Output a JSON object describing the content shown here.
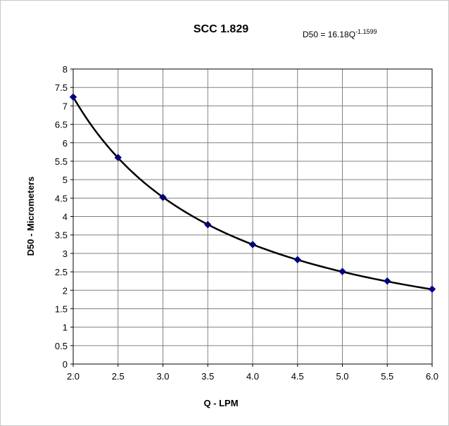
{
  "chart_data": {
    "type": "scatter",
    "title": "SCC 1.829",
    "equation": {
      "lhs": "D50 = 16.18Q",
      "exponent": "-1.1599"
    },
    "xlabel": "Q - LPM",
    "ylabel": "D50 - Micrometers",
    "xlim": [
      2.0,
      6.0
    ],
    "ylim": [
      0,
      8
    ],
    "x_ticks": [
      "2.0",
      "2.5",
      "3.0",
      "3.5",
      "4.0",
      "4.5",
      "5.0",
      "5.5",
      "6.0"
    ],
    "y_ticks": [
      "0",
      "0.5",
      "1",
      "1.5",
      "2",
      "2.5",
      "3",
      "3.5",
      "4",
      "4.5",
      "5",
      "5.5",
      "6",
      "6.5",
      "7",
      "7.5",
      "8"
    ],
    "grid": true,
    "trendline": {
      "type": "power",
      "coefficient": 16.18,
      "exponent": -1.1599,
      "color": "#000000"
    },
    "series": [
      {
        "marker": "diamond",
        "color": "#000080",
        "x": [
          2.0,
          2.5,
          3.0,
          3.5,
          4.0,
          4.5,
          5.0,
          5.5,
          6.0
        ],
        "y": [
          7.24,
          5.6,
          4.52,
          3.78,
          3.24,
          2.83,
          2.51,
          2.25,
          2.03
        ]
      }
    ]
  }
}
